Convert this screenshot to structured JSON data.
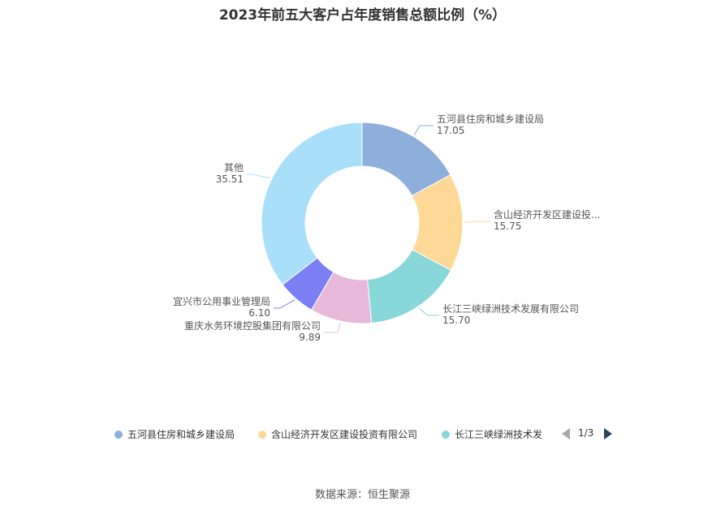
{
  "title": "2023年前五大客户占年度销售总额比例（%）",
  "source": "数据来源：恒生聚源",
  "chart_data": {
    "type": "pie",
    "unit": "%",
    "slices": [
      {
        "name": "五河县住房和城乡建设局",
        "label": "五河县住房和城乡建设局",
        "value": 17.05,
        "color": "#8eaedc"
      },
      {
        "name": "含山经济开发区建设投资有限公司",
        "label": "含山经济开发区建设投...",
        "value": 15.75,
        "color": "#fed897"
      },
      {
        "name": "长江三峡绿洲技术发展有限公司",
        "label": "长江三峡绿洲技术发展有限公司",
        "value": 15.7,
        "color": "#88d7d9"
      },
      {
        "name": "重庆水务环境控股集团有限公司",
        "label": "重庆水务环境控股集团有限公司",
        "value": 9.89,
        "color": "#e8b8d9"
      },
      {
        "name": "宜兴市公用事业管理局",
        "label": "宜兴市公用事业管理局",
        "value": 6.1,
        "color": "#7b7ff4"
      },
      {
        "name": "其他",
        "label": "其他",
        "value": 35.51,
        "color": "#aadff9"
      }
    ],
    "value_labels": [
      "17.05",
      "15.75",
      "15.70",
      "9.89",
      "6.10",
      "35.51"
    ]
  },
  "legend": {
    "items": [
      {
        "label": "五河县住房和城乡建设局",
        "color": "#8eaedc"
      },
      {
        "label": "含山经济开发区建设投资有限公司",
        "color": "#fed897"
      },
      {
        "label": "长江三峡绿洲技术发",
        "color": "#88d7d9"
      }
    ],
    "page_text": "1/3"
  }
}
